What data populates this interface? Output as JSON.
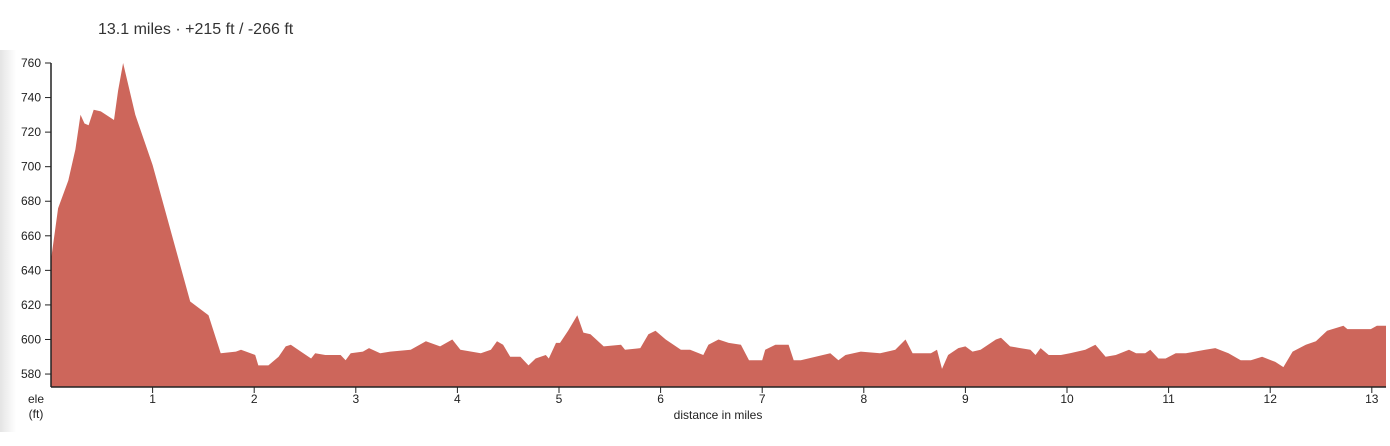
{
  "summary": "13.1 miles · +215 ft / -266 ft",
  "chart_data": {
    "type": "area",
    "title": "13.1 miles · +215 ft / -266 ft",
    "xlabel": "distance in miles",
    "ylabel_line1": "ele",
    "ylabel_line2": "(ft)",
    "xlim": [
      0,
      13.14
    ],
    "ylim": [
      572.5,
      760
    ],
    "xticks": [
      1,
      2,
      3,
      4,
      5,
      6,
      7,
      8,
      9,
      10,
      11,
      12,
      13
    ],
    "yticks": [
      580,
      600,
      620,
      640,
      660,
      680,
      700,
      720,
      740,
      760
    ],
    "grid": false,
    "fill_color": "#cd665b",
    "x": [
      0.0,
      0.07,
      0.17,
      0.24,
      0.29,
      0.33,
      0.37,
      0.42,
      0.49,
      0.62,
      0.66,
      0.71,
      0.83,
      1.0,
      1.37,
      1.55,
      1.67,
      1.82,
      1.87,
      2.01,
      2.04,
      2.14,
      2.24,
      2.31,
      2.36,
      2.46,
      2.56,
      2.6,
      2.7,
      2.85,
      2.9,
      2.95,
      3.07,
      3.13,
      3.24,
      3.34,
      3.54,
      3.69,
      3.83,
      3.95,
      4.03,
      4.23,
      4.33,
      4.39,
      4.45,
      4.52,
      4.62,
      4.7,
      4.77,
      4.87,
      4.9,
      4.97,
      5.01,
      5.09,
      5.18,
      5.24,
      5.31,
      5.44,
      5.61,
      5.65,
      5.8,
      5.88,
      5.95,
      6.05,
      6.2,
      6.29,
      6.42,
      6.47,
      6.57,
      6.67,
      6.79,
      6.87,
      7.0,
      7.03,
      7.13,
      7.26,
      7.31,
      7.38,
      7.67,
      7.75,
      7.82,
      7.97,
      8.16,
      8.31,
      8.41,
      8.48,
      8.66,
      8.72,
      8.77,
      8.83,
      8.93,
      9.0,
      9.07,
      9.15,
      9.3,
      9.35,
      9.44,
      9.54,
      9.64,
      9.69,
      9.74,
      9.82,
      9.94,
      10.03,
      10.18,
      10.28,
      10.38,
      10.48,
      10.61,
      10.68,
      10.77,
      10.82,
      10.9,
      10.97,
      11.07,
      11.17,
      11.36,
      11.46,
      11.59,
      11.71,
      11.81,
      11.92,
      12.05,
      12.13,
      12.22,
      12.35,
      12.45,
      12.56,
      12.72,
      12.76,
      12.99,
      13.05,
      13.14
    ],
    "y": [
      646,
      676,
      692,
      710,
      730,
      725,
      724,
      733,
      732,
      727,
      744,
      760,
      730,
      701,
      622,
      614,
      592,
      593,
      594,
      591,
      585,
      585,
      590,
      596,
      597,
      593,
      589,
      592,
      591,
      591,
      588,
      592,
      593,
      595,
      592,
      593,
      594,
      599,
      596,
      600,
      594,
      592,
      594,
      599,
      597,
      590,
      590,
      585,
      589,
      591,
      589,
      598,
      598,
      605,
      614,
      604,
      603,
      596,
      597,
      594,
      595,
      603,
      605,
      600,
      594,
      594,
      591,
      597,
      600,
      598,
      597,
      588,
      588,
      594,
      597,
      597,
      588,
      588,
      592,
      588,
      591,
      593,
      592,
      594,
      600,
      592,
      592,
      594,
      583,
      591,
      595,
      596,
      593,
      594,
      600,
      601,
      596,
      595,
      594,
      591,
      595,
      591,
      591,
      592,
      594,
      597,
      590,
      591,
      594,
      592,
      592,
      594,
      589,
      589,
      592,
      592,
      594,
      595,
      592,
      588,
      588,
      590,
      587,
      584,
      593,
      597,
      599,
      605,
      608,
      606,
      606,
      608,
      608
    ]
  }
}
